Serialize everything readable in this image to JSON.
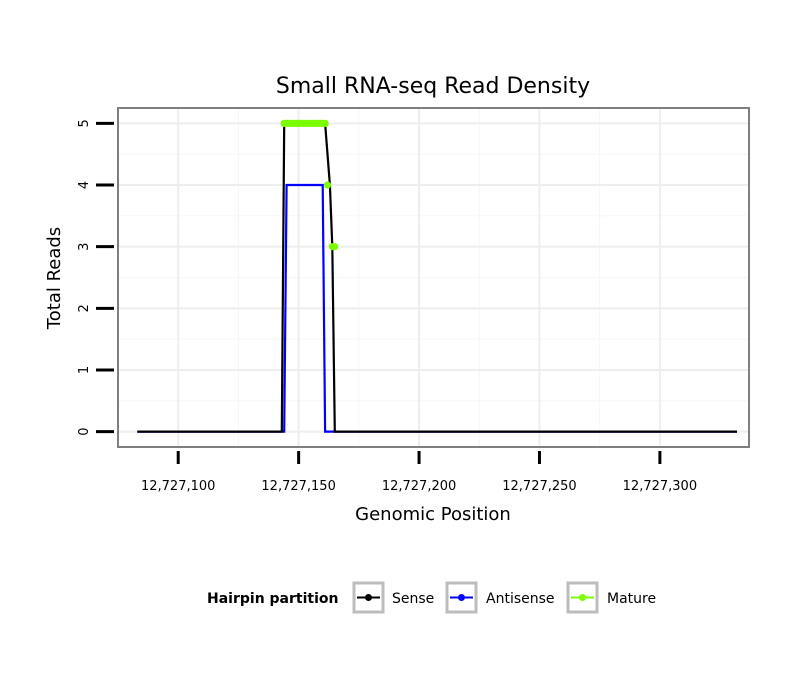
{
  "chart_data": {
    "type": "line",
    "title": "Small RNA-seq Read Density",
    "xlabel": "Genomic Position",
    "ylabel": "Total Reads",
    "xlim": [
      12727075,
      12727337
    ],
    "ylim": [
      -0.25,
      5.25
    ],
    "xticks": [
      12727100,
      12727150,
      12727200,
      12727250,
      12727300
    ],
    "xtick_labels": [
      "12,727,100",
      "12,727,150",
      "12,727,200",
      "12,727,250",
      "12,727,300"
    ],
    "yticks": [
      0,
      1,
      2,
      3,
      4,
      5
    ],
    "ytick_labels": [
      "0",
      "1",
      "2",
      "3",
      "4",
      "5"
    ],
    "grid": true,
    "legend": {
      "title": "Hairpin partition",
      "position": "bottom",
      "entries": [
        "Sense",
        "Antisense",
        "Mature"
      ]
    },
    "series": [
      {
        "name": "Sense",
        "color": "#000000",
        "x": [
          12727083,
          12727143,
          12727144,
          12727161,
          12727163,
          12727164,
          12727165,
          12727332
        ],
        "y": [
          0,
          0,
          5,
          5,
          4,
          3,
          0,
          0
        ]
      },
      {
        "name": "Antisense",
        "color": "#0000ff",
        "x": [
          12727083,
          12727144,
          12727145,
          12727160,
          12727161,
          12727332
        ],
        "y": [
          0,
          0,
          4,
          4,
          0,
          0
        ]
      },
      {
        "name": "Mature",
        "color": "#7cfc00",
        "points": [
          {
            "x": 12727144,
            "y": 5
          },
          {
            "x": 12727145,
            "y": 5
          },
          {
            "x": 12727146,
            "y": 5
          },
          {
            "x": 12727147,
            "y": 5
          },
          {
            "x": 12727148,
            "y": 5
          },
          {
            "x": 12727149,
            "y": 5
          },
          {
            "x": 12727150,
            "y": 5
          },
          {
            "x": 12727151,
            "y": 5
          },
          {
            "x": 12727152,
            "y": 5
          },
          {
            "x": 12727153,
            "y": 5
          },
          {
            "x": 12727154,
            "y": 5
          },
          {
            "x": 12727155,
            "y": 5
          },
          {
            "x": 12727156,
            "y": 5
          },
          {
            "x": 12727157,
            "y": 5
          },
          {
            "x": 12727158,
            "y": 5
          },
          {
            "x": 12727159,
            "y": 5
          },
          {
            "x": 12727160,
            "y": 5
          },
          {
            "x": 12727161,
            "y": 5
          },
          {
            "x": 12727162,
            "y": 4
          },
          {
            "x": 12727164,
            "y": 3
          },
          {
            "x": 12727165,
            "y": 3
          }
        ]
      }
    ]
  }
}
